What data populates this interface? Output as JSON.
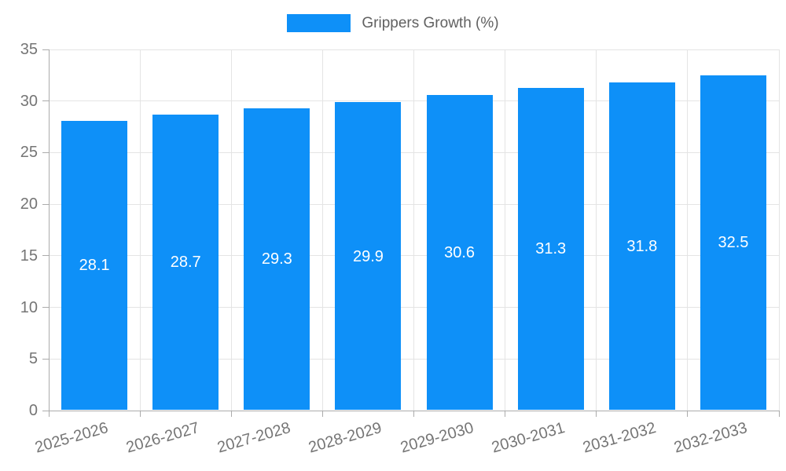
{
  "chart_data": {
    "type": "bar",
    "legend": "Grippers Growth (%)",
    "legend_position": "top",
    "categories": [
      "2025-2026",
      "2026-2027",
      "2027-2028",
      "2028-2029",
      "2029-2030",
      "2030-2031",
      "2031-2032",
      "2032-2033"
    ],
    "values": [
      28.1,
      28.7,
      29.3,
      29.9,
      30.6,
      31.3,
      31.8,
      32.5
    ],
    "value_labels": [
      "28.1",
      "28.7",
      "29.3",
      "29.9",
      "30.6",
      "31.3",
      "31.8",
      "32.5"
    ],
    "xlabel": "",
    "ylabel": "",
    "ylim": [
      0,
      35
    ],
    "y_ticks": [
      0,
      5,
      10,
      15,
      20,
      25,
      30,
      35
    ],
    "grid": true
  },
  "colors": {
    "bar": "#0e90f8",
    "grid": "#e4e4e4",
    "axis": "#ababab",
    "tick_label": "#757575",
    "legend_text": "#616161",
    "value_label": "#ffffff",
    "background": "#ffffff"
  }
}
